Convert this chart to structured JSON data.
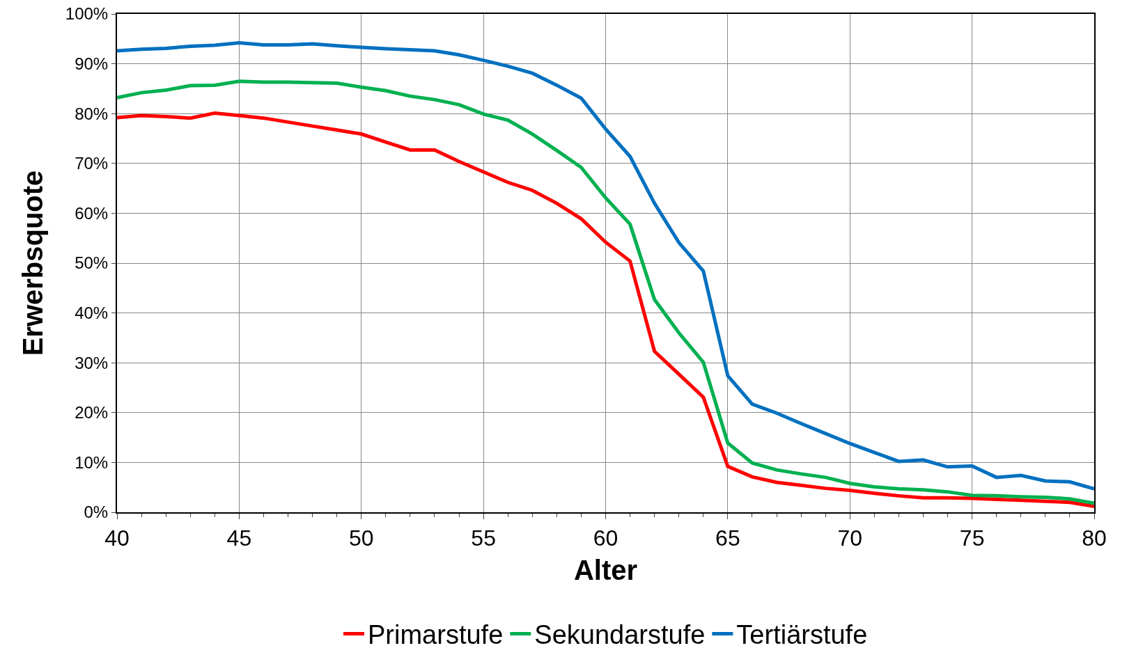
{
  "chart_data": {
    "type": "line",
    "xlabel": "Alter",
    "ylabel": "Erwerbsquote",
    "x": [
      40,
      41,
      42,
      43,
      44,
      45,
      46,
      47,
      48,
      49,
      50,
      51,
      52,
      53,
      54,
      55,
      56,
      57,
      58,
      59,
      60,
      61,
      62,
      63,
      64,
      65,
      66,
      67,
      68,
      69,
      70,
      71,
      72,
      73,
      74,
      75,
      76,
      77,
      78,
      79,
      80
    ],
    "series": [
      {
        "name": "Primarstufe",
        "color": "#ff0000",
        "values": [
          79.2,
          79.6,
          79.4,
          79.1,
          80.1,
          79.6,
          79.1,
          78.3,
          77.5,
          76.7,
          75.9,
          74.3,
          72.7,
          72.7,
          70.4,
          68.3,
          66.2,
          64.6,
          62.0,
          58.9,
          54.2,
          50.4,
          32.3,
          27.7,
          23.1,
          9.2,
          7.1,
          6.0,
          5.4,
          4.8,
          4.4,
          3.8,
          3.3,
          2.9,
          2.9,
          2.8,
          2.6,
          2.4,
          2.2,
          2.0,
          1.2
        ]
      },
      {
        "name": "Sekundarstufe",
        "color": "#00b050",
        "values": [
          83.2,
          84.2,
          84.7,
          85.6,
          85.7,
          86.5,
          86.3,
          86.3,
          86.2,
          86.1,
          85.3,
          84.6,
          83.5,
          82.8,
          81.8,
          79.9,
          78.7,
          75.9,
          72.6,
          69.2,
          63.1,
          57.8,
          42.7,
          36.0,
          30.1,
          13.9,
          9.9,
          8.5,
          7.7,
          7.0,
          5.8,
          5.1,
          4.7,
          4.5,
          4.1,
          3.4,
          3.3,
          3.1,
          3.0,
          2.7,
          1.8
        ]
      },
      {
        "name": "Tertiärstufe",
        "color": "#0070c0",
        "values": [
          92.6,
          92.9,
          93.1,
          93.5,
          93.7,
          94.2,
          93.8,
          93.8,
          94.0,
          93.6,
          93.3,
          93.0,
          92.8,
          92.6,
          91.8,
          90.7,
          89.5,
          88.1,
          85.7,
          83.1,
          76.9,
          71.4,
          62.0,
          54.1,
          48.4,
          27.4,
          21.7,
          19.9,
          17.8,
          15.8,
          13.8,
          12.0,
          10.2,
          10.5,
          9.1,
          9.3,
          7.0,
          7.4,
          6.3,
          6.1,
          4.7
        ]
      }
    ],
    "xlim": [
      40,
      80
    ],
    "xticks": [
      40,
      45,
      50,
      55,
      60,
      65,
      70,
      75,
      80
    ],
    "ylim": [
      0,
      100
    ],
    "yticks": [
      {
        "value": 0,
        "label": "0%"
      },
      {
        "value": 10,
        "label": "10%"
      },
      {
        "value": 20,
        "label": "20%"
      },
      {
        "value": 30,
        "label": "30%"
      },
      {
        "value": 40,
        "label": "40%"
      },
      {
        "value": 50,
        "label": "50%"
      },
      {
        "value": 60,
        "label": "60%"
      },
      {
        "value": 70,
        "label": "70%"
      },
      {
        "value": 80,
        "label": "80%"
      },
      {
        "value": 90,
        "label": "90%"
      },
      {
        "value": 100,
        "label": "100%"
      }
    ],
    "grid": true,
    "legend": "bottom",
    "marker": "none",
    "line_style": "solid"
  }
}
